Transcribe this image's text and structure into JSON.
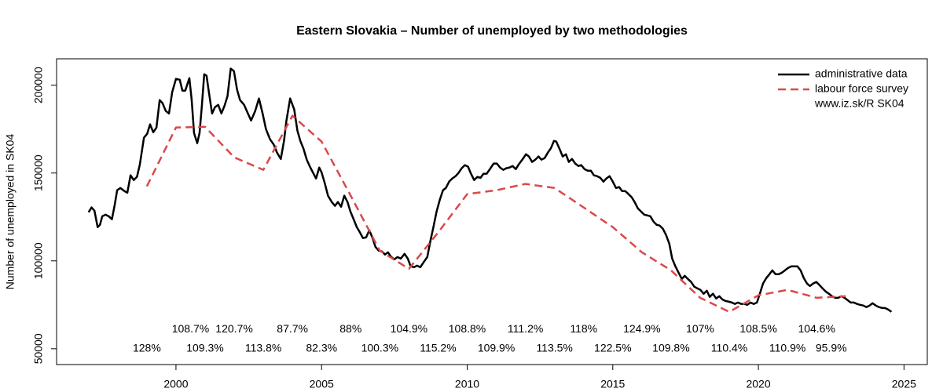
{
  "chart_data": {
    "type": "line",
    "title": "Eastern Slovakia – Number of unemployed  by two methodologies",
    "y_label": "Number of unemployed in SK04",
    "xlim": [
      1995.9,
      2025.8
    ],
    "xticks": [
      2000,
      2005,
      2010,
      2015,
      2020,
      2025
    ],
    "ylim": [
      41000,
      215000
    ],
    "yticks": [
      50000,
      100000,
      150000,
      200000
    ],
    "legend_position": "top-right",
    "source": "www.iz.sk/R SK04",
    "series": [
      {
        "name": "administrative data",
        "color": "#000000",
        "dash": "solid",
        "x": [
          1997.0,
          1997.1,
          1997.2,
          1997.31,
          1997.39,
          1997.47,
          1997.58,
          1997.69,
          1997.8,
          1997.9,
          1997.98,
          1998.09,
          1998.23,
          1998.33,
          1998.44,
          1998.55,
          1998.66,
          1998.76,
          1998.9,
          1999.01,
          1999.11,
          1999.22,
          1999.33,
          1999.44,
          1999.54,
          1999.65,
          1999.76,
          1999.87,
          2000.0,
          2000.13,
          2000.22,
          2000.32,
          2000.46,
          2000.54,
          2000.62,
          2000.73,
          2000.81,
          2000.89,
          2000.97,
          2001.05,
          2001.13,
          2001.24,
          2001.34,
          2001.45,
          2001.56,
          2001.67,
          2001.77,
          2001.88,
          2001.99,
          2002.1,
          2002.2,
          2002.34,
          2002.47,
          2002.58,
          2002.72,
          2002.85,
          2002.98,
          2003.09,
          2003.23,
          2003.36,
          2003.47,
          2003.6,
          2003.71,
          2003.79,
          2003.92,
          2004.06,
          2004.17,
          2004.27,
          2004.38,
          2004.49,
          2004.6,
          2004.7,
          2004.81,
          2004.92,
          2005.0,
          2005.11,
          2005.22,
          2005.35,
          2005.46,
          2005.56,
          2005.67,
          2005.78,
          2005.89,
          2005.99,
          2006.1,
          2006.21,
          2006.32,
          2006.42,
          2006.53,
          2006.64,
          2006.75,
          2006.85,
          2006.96,
          2007.07,
          2007.18,
          2007.28,
          2007.39,
          2007.5,
          2007.61,
          2007.72,
          2007.85,
          2007.96,
          2008.06,
          2008.17,
          2008.28,
          2008.39,
          2008.52,
          2008.63,
          2008.74,
          2008.84,
          2008.95,
          2009.06,
          2009.17,
          2009.27,
          2009.38,
          2009.49,
          2009.6,
          2009.7,
          2009.81,
          2009.92,
          2010.03,
          2010.13,
          2010.24,
          2010.35,
          2010.46,
          2010.56,
          2010.67,
          2010.78,
          2010.91,
          2011.02,
          2011.13,
          2011.24,
          2011.34,
          2011.45,
          2011.56,
          2011.67,
          2011.77,
          2011.91,
          2012.02,
          2012.12,
          2012.23,
          2012.34,
          2012.45,
          2012.55,
          2012.66,
          2012.77,
          2012.88,
          2012.98,
          2013.06,
          2013.17,
          2013.28,
          2013.39,
          2013.49,
          2013.6,
          2013.71,
          2013.82,
          2013.92,
          2014.03,
          2014.14,
          2014.25,
          2014.35,
          2014.46,
          2014.57,
          2014.68,
          2014.78,
          2014.89,
          2015.0,
          2015.11,
          2015.22,
          2015.32,
          2015.43,
          2015.54,
          2015.65,
          2015.75,
          2015.86,
          2015.97,
          2016.08,
          2016.18,
          2016.29,
          2016.4,
          2016.51,
          2016.61,
          2016.72,
          2016.83,
          2016.94,
          2017.04,
          2017.15,
          2017.26,
          2017.37,
          2017.47,
          2017.58,
          2017.69,
          2017.8,
          2017.9,
          2018.01,
          2018.12,
          2018.23,
          2018.33,
          2018.44,
          2018.55,
          2018.66,
          2018.76,
          2018.87,
          2018.98,
          2019.09,
          2019.19,
          2019.3,
          2019.41,
          2019.52,
          2019.62,
          2019.73,
          2019.84,
          2019.95,
          2020.05,
          2020.16,
          2020.27,
          2020.38,
          2020.48,
          2020.59,
          2020.7,
          2020.81,
          2020.91,
          2021.02,
          2021.13,
          2021.24,
          2021.34,
          2021.45,
          2021.56,
          2021.67,
          2021.77,
          2021.88,
          2021.99,
          2022.1,
          2022.2,
          2022.31,
          2022.42,
          2022.53,
          2022.63,
          2022.74,
          2022.85,
          2022.96,
          2023.06,
          2023.17,
          2023.28,
          2023.39,
          2023.49,
          2023.6,
          2023.71,
          2023.82,
          2023.92,
          2024.03,
          2024.14,
          2024.25,
          2024.35,
          2024.46,
          2024.57
        ],
        "values": [
          127700,
          130400,
          128600,
          119200,
          120500,
          125400,
          126300,
          125400,
          123700,
          132200,
          140200,
          141500,
          139700,
          138800,
          148700,
          146000,
          147800,
          154900,
          170100,
          172300,
          177700,
          173200,
          175900,
          191500,
          189700,
          185300,
          183900,
          196000,
          203600,
          203100,
          196900,
          196900,
          204000,
          191500,
          172800,
          167000,
          172800,
          188400,
          206200,
          205400,
          196000,
          183900,
          187500,
          188800,
          183900,
          188400,
          193800,
          209400,
          208000,
          197300,
          191500,
          188800,
          183900,
          179900,
          185300,
          192400,
          183500,
          175000,
          169200,
          166100,
          161600,
          158000,
          168300,
          179500,
          192400,
          186200,
          174100,
          168300,
          163800,
          157600,
          153600,
          150400,
          146900,
          153100,
          150400,
          144200,
          137100,
          133500,
          131300,
          133500,
          130800,
          137100,
          133500,
          128100,
          123700,
          119200,
          116100,
          113000,
          113400,
          117400,
          113000,
          108000,
          105800,
          105400,
          103600,
          104900,
          102200,
          100900,
          102200,
          101300,
          104000,
          101300,
          96900,
          96400,
          97300,
          96400,
          99600,
          102200,
          111600,
          119200,
          128100,
          134800,
          140200,
          141500,
          145100,
          146900,
          148200,
          150000,
          152700,
          154500,
          153600,
          149600,
          146000,
          147800,
          147300,
          149600,
          149600,
          152200,
          155400,
          155400,
          153100,
          151800,
          152700,
          153100,
          154000,
          152200,
          154900,
          158000,
          160700,
          159400,
          156300,
          157600,
          159400,
          157600,
          158500,
          161600,
          164300,
          168300,
          167900,
          163800,
          159400,
          160700,
          156300,
          158000,
          155400,
          154000,
          154500,
          152200,
          151300,
          151300,
          148700,
          148200,
          147300,
          145100,
          146900,
          148200,
          145100,
          141500,
          142000,
          139700,
          139700,
          138000,
          136200,
          133500,
          129900,
          128100,
          126300,
          125900,
          125400,
          122300,
          120500,
          120100,
          118300,
          114700,
          109800,
          101300,
          96900,
          93300,
          89700,
          91500,
          89700,
          88000,
          85300,
          84400,
          83500,
          81300,
          83000,
          79500,
          81300,
          78600,
          79900,
          78100,
          77200,
          76800,
          76300,
          75500,
          76300,
          75500,
          75500,
          75000,
          76300,
          75500,
          76300,
          81300,
          87100,
          90200,
          92400,
          94600,
          92400,
          92400,
          93300,
          94600,
          96000,
          96900,
          96900,
          96900,
          94600,
          90200,
          87100,
          85700,
          87100,
          88000,
          86200,
          84400,
          82600,
          81300,
          79900,
          79000,
          79000,
          79900,
          79000,
          77700,
          76300,
          76300,
          75500,
          75000,
          74600,
          73700,
          74600,
          75900,
          74600,
          73700,
          73200,
          73200,
          72300,
          71000
        ]
      },
      {
        "name": "labour force survey",
        "color": "#dc4848",
        "dash": "dashed",
        "x": [
          1999,
          2000,
          2001,
          2002,
          2003,
          2004,
          2005,
          2006,
          2007,
          2008,
          2009,
          2010,
          2011,
          2012,
          2013,
          2014,
          2015,
          2016,
          2017,
          2018,
          2019,
          2020,
          2021,
          2022,
          2023
        ],
        "values": [
          142400,
          175900,
          176300,
          158900,
          151800,
          182600,
          167900,
          137100,
          105800,
          95500,
          116100,
          138000,
          140200,
          143800,
          141500,
          130400,
          119200,
          104900,
          94600,
          79000,
          71000,
          80400,
          83500,
          79000,
          79900
        ]
      }
    ],
    "annotations": [
      {
        "text": "108.7%",
        "x": 2000.5,
        "y": 61000
      },
      {
        "text": "120.7%",
        "x": 2002,
        "y": 61000
      },
      {
        "text": "87.7%",
        "x": 2004,
        "y": 61000
      },
      {
        "text": "88%",
        "x": 2006,
        "y": 61000
      },
      {
        "text": "104.9%",
        "x": 2008,
        "y": 61000
      },
      {
        "text": "108.8%",
        "x": 2010,
        "y": 61000
      },
      {
        "text": "111.2%",
        "x": 2012,
        "y": 61000
      },
      {
        "text": "118%",
        "x": 2014,
        "y": 61000
      },
      {
        "text": "124.9%",
        "x": 2016,
        "y": 61000
      },
      {
        "text": "107%",
        "x": 2018,
        "y": 61000
      },
      {
        "text": "108.5%",
        "x": 2020,
        "y": 61000
      },
      {
        "text": "104.6%",
        "x": 2022,
        "y": 61000
      },
      {
        "text": "128%",
        "x": 1999,
        "y": 50000
      },
      {
        "text": "109.3%",
        "x": 2001,
        "y": 50000
      },
      {
        "text": "113.8%",
        "x": 2003,
        "y": 50000
      },
      {
        "text": "82.3%",
        "x": 2005,
        "y": 50000
      },
      {
        "text": "100.3%",
        "x": 2007,
        "y": 50000
      },
      {
        "text": "115.2%",
        "x": 2009,
        "y": 50000
      },
      {
        "text": "109.9%",
        "x": 2011,
        "y": 50000
      },
      {
        "text": "113.5%",
        "x": 2013,
        "y": 50000
      },
      {
        "text": "122.5%",
        "x": 2015,
        "y": 50000
      },
      {
        "text": "109.8%",
        "x": 2017,
        "y": 50000
      },
      {
        "text": "110.4%",
        "x": 2019,
        "y": 50000
      },
      {
        "text": "110.9%",
        "x": 2021,
        "y": 50000
      },
      {
        "text": "95.9%",
        "x": 2022.5,
        "y": 50000
      }
    ]
  }
}
